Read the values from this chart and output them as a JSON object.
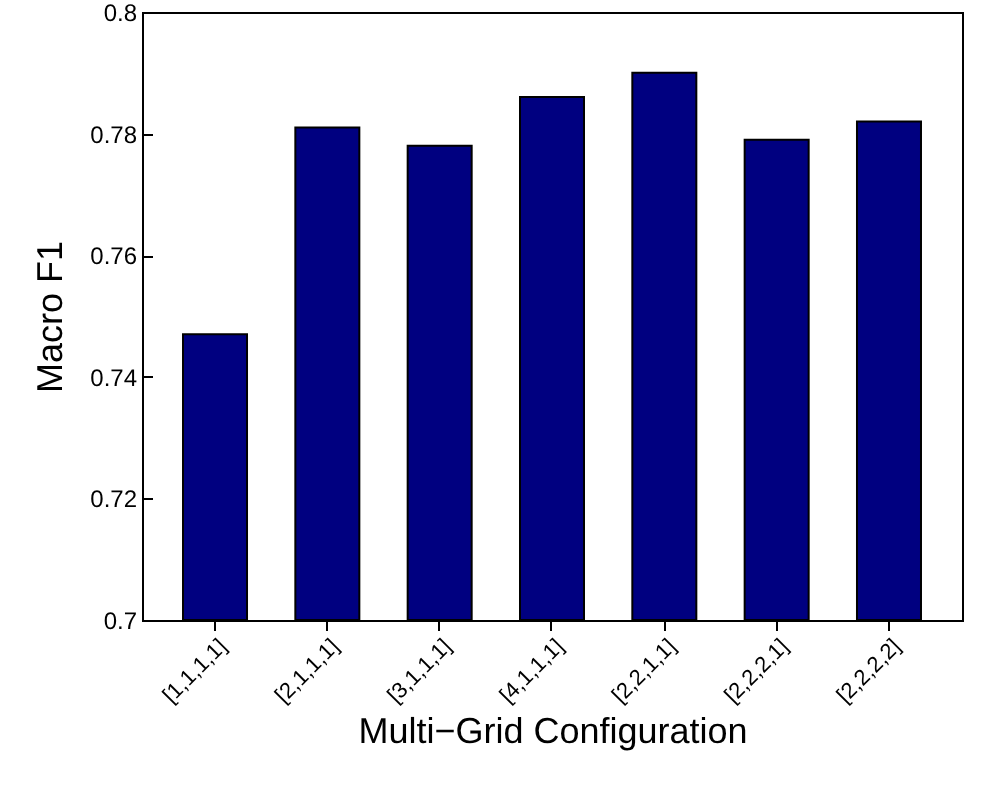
{
  "chart_data": {
    "type": "bar",
    "xlabel": "Multi−Grid Configuration",
    "ylabel": "Macro F1",
    "categories": [
      "[1,1,1,1]",
      "[2,1,1,1]",
      "[3,1,1,1]",
      "[4,1,1,1]",
      "[2,2,1,1]",
      "[2,2,2,1]",
      "[2,2,2,2]"
    ],
    "values": [
      0.747,
      0.781,
      0.778,
      0.786,
      0.79,
      0.779,
      0.782
    ],
    "color": "#000080",
    "ylim": [
      0.7,
      0.8
    ],
    "yticks": [
      0.7,
      0.72,
      0.74,
      0.76,
      0.78,
      0.8
    ],
    "grid": false
  }
}
